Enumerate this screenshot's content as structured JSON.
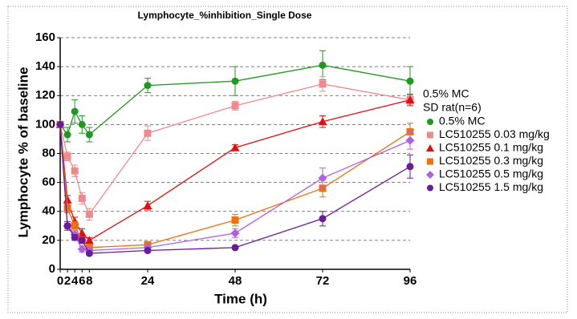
{
  "chart_data": {
    "type": "line",
    "title": "Lymphocyte_%inhibition_Single Dose",
    "xlabel": "Time (h)",
    "ylabel": "Lymphocyte % of baseline",
    "legend_title": [
      "0.5% MC",
      "SD rat(n=6)"
    ],
    "x": [
      0,
      2,
      4,
      6,
      8,
      24,
      48,
      72,
      96
    ],
    "xlim": [
      0,
      96
    ],
    "xticks": [
      0,
      2,
      4,
      6,
      8,
      24,
      48,
      72,
      96
    ],
    "ylim": [
      0,
      160
    ],
    "yticks": [
      0,
      20,
      40,
      60,
      80,
      100,
      120,
      140,
      160
    ],
    "grid": true,
    "legend": "right",
    "series": [
      {
        "name": "0.5% MC",
        "color": "#1e9a1e",
        "marker": "circle",
        "values": [
          100,
          93,
          109,
          100,
          93,
          127,
          130,
          141,
          130
        ],
        "errors": [
          0,
          5,
          8,
          6,
          5,
          5,
          10,
          10,
          10
        ]
      },
      {
        "name": "LC510255 0.03 mg/kg",
        "color": "#f08a8a",
        "marker": "square",
        "values": [
          100,
          78,
          68,
          49,
          38,
          94,
          113,
          128,
          117
        ],
        "errors": [
          0,
          3,
          4,
          4,
          4,
          5,
          3,
          5,
          3
        ]
      },
      {
        "name": "LC510255 0.1 mg/kg",
        "color": "#e01010",
        "marker": "triangle",
        "values": [
          100,
          48,
          33,
          25,
          20,
          44,
          84,
          102,
          117
        ],
        "errors": [
          0,
          3,
          3,
          3,
          2,
          3,
          2,
          4,
          4
        ]
      },
      {
        "name": "LC510255 0.3 mg/kg",
        "color": "#f07010",
        "marker": "square",
        "values": [
          100,
          42,
          30,
          20,
          15,
          17,
          34,
          56,
          95
        ],
        "errors": [
          0,
          3,
          3,
          2,
          2,
          2,
          4,
          6,
          6
        ]
      },
      {
        "name": "LC510255 0.5 mg/kg",
        "color": "#b060e0",
        "marker": "diamond",
        "values": [
          100,
          30,
          24,
          14,
          13,
          15,
          25,
          63,
          89
        ],
        "errors": [
          0,
          2,
          2,
          2,
          1,
          2,
          3,
          7,
          6
        ]
      },
      {
        "name": "LC510255 1.5 mg/kg",
        "color": "#6a1a9a",
        "marker": "circle",
        "values": [
          100,
          30,
          22,
          20,
          11,
          13,
          15,
          35,
          71
        ],
        "errors": [
          0,
          3,
          2,
          2,
          1,
          1,
          1,
          5,
          8
        ]
      }
    ]
  }
}
